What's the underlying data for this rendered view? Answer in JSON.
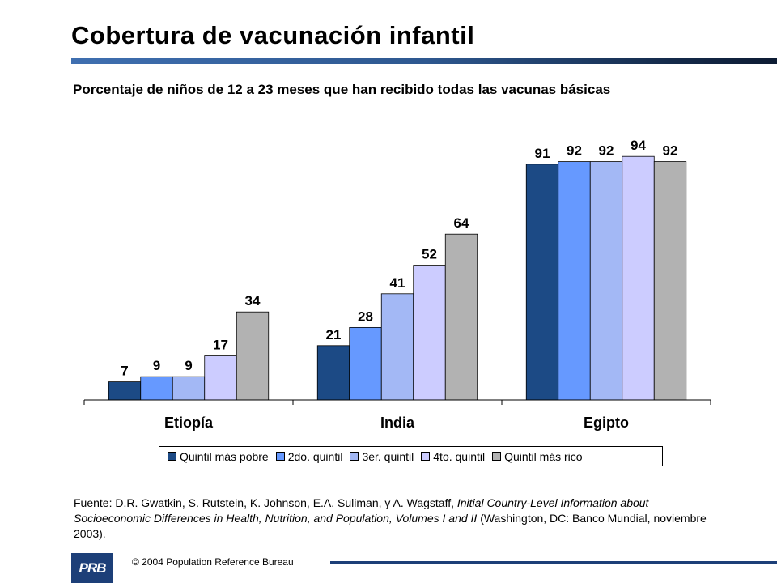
{
  "header": {
    "title": "Cobertura de vacunación infantil"
  },
  "chart_data": {
    "type": "bar",
    "title": "Porcentaje de niños de 12 a 23 meses que han recibido todas las vacunas básicas",
    "categories": [
      "Etiopía",
      "India",
      "Egipto"
    ],
    "series": [
      {
        "name": "Quintil más pobre",
        "color": "#1c4a85",
        "values": [
          7,
          21,
          91
        ]
      },
      {
        "name": "2do. quintil",
        "color": "#6699ff",
        "values": [
          9,
          28,
          92
        ]
      },
      {
        "name": "3er. quintil",
        "color": "#a3b8f5",
        "values": [
          9,
          41,
          92
        ]
      },
      {
        "name": "4to. quintil",
        "color": "#ccccff",
        "values": [
          17,
          52,
          94
        ]
      },
      {
        "name": "Quintil más rico",
        "color": "#b2b2b2",
        "values": [
          34,
          64,
          92
        ]
      }
    ],
    "ylim": [
      0,
      100
    ],
    "grid": false,
    "legend": "bottom",
    "data_labels": true
  },
  "source": {
    "prefix": "Fuente: D.R. Gwatkin, S. Rutstein, K. Johnson, E.A. Suliman, y A. Wagstaff, ",
    "title": "Initial Country-Level Information about Socioeconomic Differences in Health, Nutrition, and Population, Volumes I and II",
    "suffix": " (Washington, DC: Banco Mundial, noviembre 2003)."
  },
  "footer": {
    "logo_text": "PRB",
    "copyright": "© 2004  Population Reference Bureau"
  }
}
